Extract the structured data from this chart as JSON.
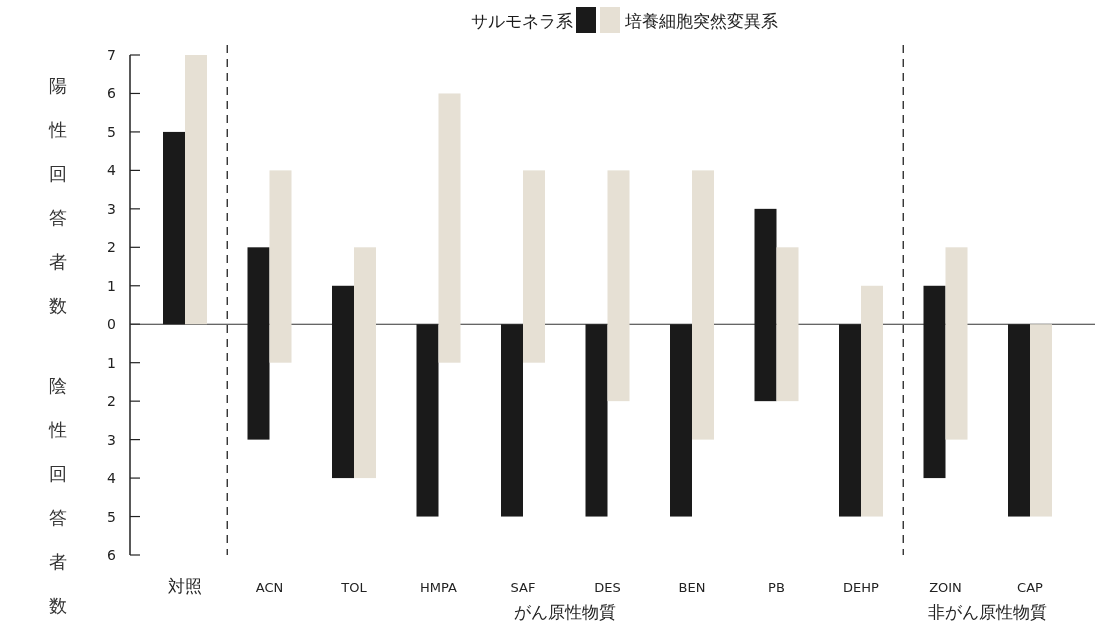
{
  "chart_data": {
    "type": "bar",
    "categories": [
      "対照",
      "ACN",
      "TOL",
      "HMPA",
      "SAF",
      "DES",
      "BEN",
      "PB",
      "DEHP",
      "ZOIN",
      "CAP"
    ],
    "ylabel": "陽性回答者数",
    "series": [
      {
        "name": "サルモネラ系",
        "color": "#1a1a1a",
        "base": [
          0,
          -3,
          -4,
          -5,
          -5,
          -5,
          -5,
          -2,
          -5,
          -4,
          -5
        ],
        "values": [
          5,
          5,
          5,
          5,
          5,
          5,
          5,
          5,
          5,
          5,
          5
        ]
      },
      {
        "name": "培養細胞突然変異系",
        "color": "#e6e0d4",
        "base": [
          0,
          -1,
          -4,
          -1,
          -1,
          -2,
          -3,
          -2,
          -5,
          -3,
          -5
        ],
        "values": [
          7,
          5,
          6,
          7,
          5,
          6,
          7,
          4,
          6,
          5,
          5
        ]
      }
    ],
    "ylim": [
      -6,
      7
    ],
    "yticks": [
      {
        "value": -6,
        "label": "6"
      },
      {
        "value": -5,
        "label": "5"
      },
      {
        "value": -4,
        "label": "4"
      },
      {
        "value": -3,
        "label": "3"
      },
      {
        "value": -2,
        "label": "2"
      },
      {
        "value": -1,
        "label": "1"
      },
      0,
      1,
      2,
      3,
      4,
      5,
      6,
      7
    ],
    "annotations": [
      "がん原性物質",
      "非がん原性物質",
      "陰性回答者数"
    ],
    "legend": "top"
  }
}
